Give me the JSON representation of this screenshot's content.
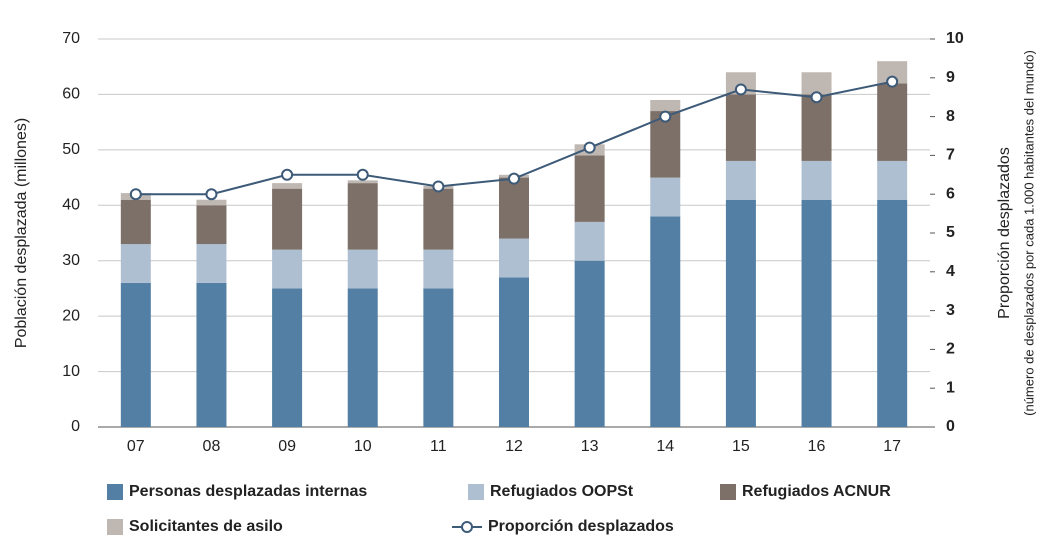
{
  "chart_data": {
    "type": "bar",
    "stacked": true,
    "categories": [
      "07",
      "08",
      "09",
      "10",
      "11",
      "12",
      "13",
      "14",
      "15",
      "16",
      "17"
    ],
    "series": [
      {
        "name": "Personas desplazadas internas",
        "color": "#527fa3",
        "values": [
          26,
          26,
          25,
          25,
          25,
          27,
          30,
          38,
          41,
          41,
          41
        ]
      },
      {
        "name": "Refugiados OOPSt",
        "color": "#aebfd1",
        "values": [
          7,
          7,
          7,
          7,
          7,
          7,
          7,
          7,
          7,
          7,
          7
        ]
      },
      {
        "name": "Refugiados ACNUR",
        "color": "#7d7068",
        "values": [
          8,
          7,
          11,
          12,
          11,
          11,
          12,
          12,
          12,
          12,
          14
        ]
      },
      {
        "name": "Solicitantes de asilo",
        "color": "#bfb7b1",
        "values": [
          1.2,
          1,
          1,
          0.5,
          0.5,
          0.5,
          2,
          2,
          4,
          4,
          4
        ]
      },
      {
        "name": "Proporción desplazados",
        "color": "#3d5a78",
        "type": "line",
        "axis": "y2",
        "values": [
          6.0,
          6.0,
          6.5,
          6.5,
          6.2,
          6.4,
          7.2,
          8.0,
          8.7,
          8.5,
          8.9
        ]
      }
    ],
    "ylabel": "Población desplazada (millones)",
    "y2label": "Proporción desplazados",
    "y2sublabel": "(número de desplazados por cada 1.000 habitantes del mundo)",
    "ylim": [
      0,
      70
    ],
    "yticks": [
      0,
      10,
      20,
      30,
      40,
      50,
      60,
      70
    ],
    "y2lim": [
      0,
      10
    ],
    "y2ticks": [
      0,
      1,
      2,
      3,
      4,
      5,
      6,
      7,
      8,
      9,
      10
    ],
    "grid": true,
    "legend": "bottom"
  }
}
